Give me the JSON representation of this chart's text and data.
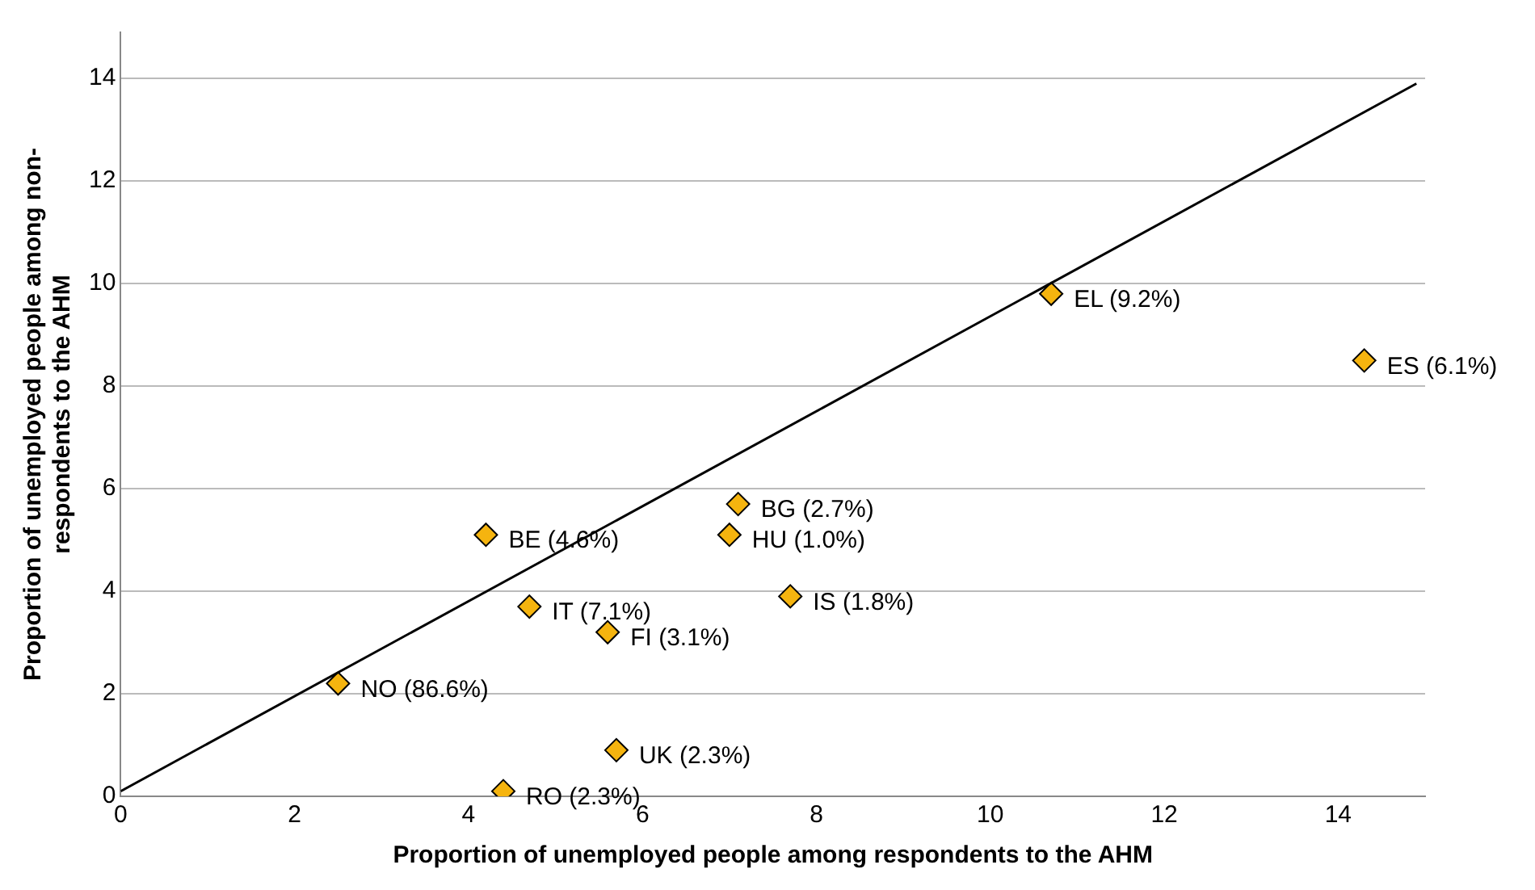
{
  "chart_data": {
    "type": "scatter",
    "xlabel": "Proportion of unemployed people among respondents to the AHM",
    "ylabel": "Proportion of unemployed people among non-respondents to the AHM",
    "xlim": [
      0,
      15
    ],
    "xticks": [
      0,
      2,
      4,
      6,
      8,
      10,
      12,
      14
    ],
    "ylim": [
      0,
      14.9
    ],
    "yticks": [
      0,
      2,
      4,
      6,
      8,
      10,
      12,
      14
    ],
    "grid": "y",
    "legend": false,
    "series": [
      {
        "color": "#f5b40f",
        "marker": "diamond",
        "x": [
          10.7,
          14.3,
          7.1,
          4.2,
          7.0,
          7.7,
          4.7,
          5.6,
          2.5,
          5.7,
          4.4
        ],
        "values": [
          9.8,
          8.5,
          5.7,
          5.1,
          5.1,
          3.9,
          3.7,
          3.2,
          2.2,
          0.9,
          0.1
        ]
      },
      {
        "type": "line",
        "color": "#000000",
        "marker": "none",
        "x": [
          0,
          14.9
        ],
        "values": [
          0.1,
          13.9
        ]
      }
    ],
    "annotations": [
      {
        "text": "EL (9.2%)",
        "x": 10.7,
        "y": 9.8
      },
      {
        "text": "ES (6.1%)",
        "x": 14.3,
        "y": 8.5
      },
      {
        "text": "BG (2.7%)",
        "x": 7.1,
        "y": 5.7
      },
      {
        "text": "BE (4.6%)",
        "x": 4.2,
        "y": 5.1
      },
      {
        "text": "HU (1.0%)",
        "x": 7.0,
        "y": 5.1
      },
      {
        "text": "IS (1.8%)",
        "x": 7.7,
        "y": 3.9
      },
      {
        "text": "IT (7.1%)",
        "x": 4.7,
        "y": 3.7
      },
      {
        "text": "FI (3.1%)",
        "x": 5.6,
        "y": 3.2
      },
      {
        "text": "NO (86.6%)",
        "x": 2.5,
        "y": 2.2
      },
      {
        "text": "UK (2.3%)",
        "x": 5.7,
        "y": 0.9
      },
      {
        "text": "RO (2.3%)",
        "x": 4.4,
        "y": 0.1
      }
    ]
  }
}
